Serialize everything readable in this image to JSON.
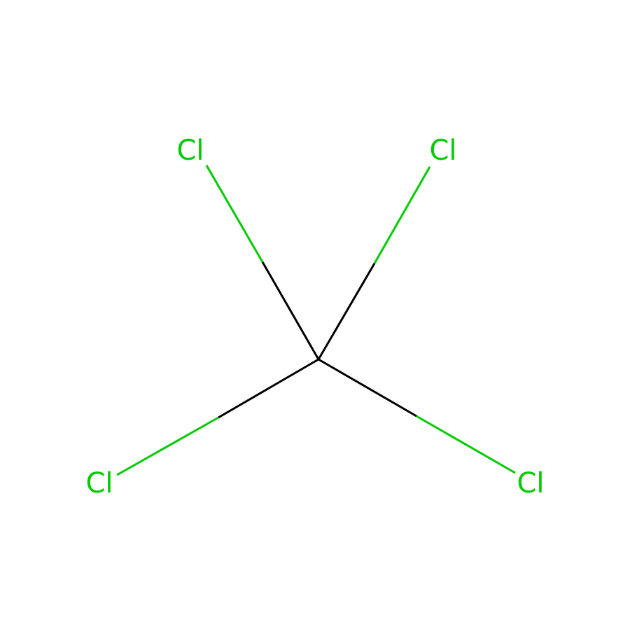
{
  "molecule": {
    "colors": {
      "carbon_bond": "#000000",
      "chlorine": "#00CC00",
      "background": "#FFFFFF"
    },
    "atoms": [
      {
        "id": "c1",
        "element": "C",
        "label": ""
      },
      {
        "id": "cl-upper-left",
        "element": "Cl",
        "label": "Cl"
      },
      {
        "id": "cl-upper-right",
        "element": "Cl",
        "label": "Cl"
      },
      {
        "id": "cl-lower-left",
        "element": "Cl",
        "label": "Cl"
      },
      {
        "id": "cl-lower-right",
        "element": "Cl",
        "label": "Cl"
      }
    ],
    "bonds": [
      {
        "from": "c1",
        "to": "cl-upper-left",
        "order": 1
      },
      {
        "from": "c1",
        "to": "cl-upper-right",
        "order": 1
      },
      {
        "from": "c1",
        "to": "cl-lower-left",
        "order": 1
      },
      {
        "from": "c1",
        "to": "cl-lower-right",
        "order": 1
      }
    ]
  }
}
